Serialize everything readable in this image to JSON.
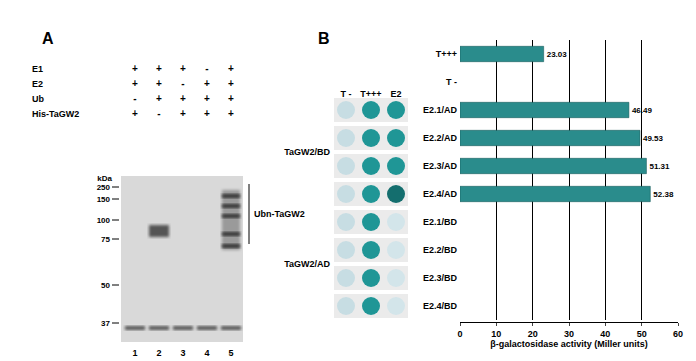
{
  "panel_a": {
    "letter": "A",
    "rows": [
      {
        "label": "E1",
        "lanes": [
          "+",
          "+",
          "+",
          "-",
          "+"
        ]
      },
      {
        "label": "E2",
        "lanes": [
          "+",
          "+",
          "-",
          "+",
          "+"
        ]
      },
      {
        "label": "Ub",
        "lanes": [
          "-",
          "+",
          "+",
          "+",
          "+"
        ]
      },
      {
        "label": "His-TaGW2",
        "lanes": [
          "+",
          "-",
          "+",
          "+",
          "+"
        ]
      }
    ],
    "lane_numbers": [
      1,
      2,
      3,
      4,
      5
    ],
    "unit": "kDa",
    "markers": [
      250,
      150,
      100,
      75,
      50,
      37
    ],
    "bracket_label": "Ubn-TaGW2"
  },
  "panel_b": {
    "letter": "B",
    "spot_columns": [
      "T -",
      "T+++",
      "E2"
    ],
    "groups": [
      {
        "label": "TaGW2/BD",
        "spots": [
          [
            "#c7dde3",
            "#1f9696",
            "#1f9696"
          ],
          [
            "#c7dde3",
            "#1f9696",
            "#1f9696"
          ],
          [
            "#c7dde3",
            "#1f9696",
            "#1f9696"
          ],
          [
            "#c7dde3",
            "#1f9696",
            "#146e6e"
          ]
        ]
      },
      {
        "label": "TaGW2/AD",
        "spots": [
          [
            "#c7dde3",
            "#1f9696",
            "#d3e5ea"
          ],
          [
            "#c7dde3",
            "#1f9696",
            "#d3e5ea"
          ],
          [
            "#c7dde3",
            "#1f9696",
            "#d3e5ea"
          ],
          [
            "#c7dde3",
            "#1f9696",
            "#d3e5ea"
          ]
        ]
      }
    ]
  },
  "chart_data": {
    "type": "bar",
    "orientation": "horizontal",
    "categories": [
      "T+++",
      "T -",
      "E2.1/AD",
      "E2.2/AD",
      "E2.3/AD",
      "E2.4/AD",
      "E2.1/BD",
      "E2.2/BD",
      "E2.3/BD",
      "E2.4/BD"
    ],
    "values": [
      23.03,
      null,
      46.49,
      49.53,
      51.31,
      52.38,
      null,
      null,
      null,
      null
    ],
    "color": "#2a8c8c",
    "x_label": "β-galactosidase activity (Miller units)",
    "xlim": [
      0,
      60
    ],
    "xticks": [
      0,
      10,
      20,
      30,
      40,
      50,
      60
    ],
    "grid": true,
    "data_labels": true
  }
}
